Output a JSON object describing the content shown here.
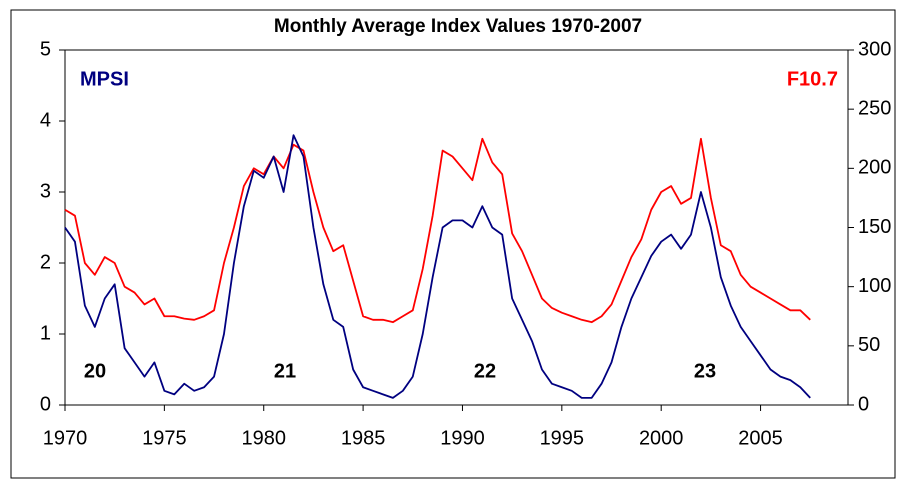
{
  "chart_data": {
    "type": "line",
    "title": "Monthly Average Index Values 1970-2007",
    "x": [
      1970,
      1970.5,
      1971,
      1971.5,
      1972,
      1972.5,
      1973,
      1973.5,
      1974,
      1974.5,
      1975,
      1975.5,
      1976,
      1976.5,
      1977,
      1977.5,
      1978,
      1978.5,
      1979,
      1979.5,
      1980,
      1980.5,
      1981,
      1981.5,
      1982,
      1982.5,
      1983,
      1983.5,
      1984,
      1984.5,
      1985,
      1985.5,
      1986,
      1986.5,
      1987,
      1987.5,
      1988,
      1988.5,
      1989,
      1989.5,
      1990,
      1990.5,
      1991,
      1991.5,
      1992,
      1992.5,
      1993,
      1993.5,
      1994,
      1994.5,
      1995,
      1995.5,
      1996,
      1996.5,
      1997,
      1997.5,
      1998,
      1998.5,
      1999,
      1999.5,
      2000,
      2000.5,
      2001,
      2001.5,
      2002,
      2002.5,
      2003,
      2003.5,
      2004,
      2004.5,
      2005,
      2005.5,
      2006,
      2006.5,
      2007,
      2007.5
    ],
    "series": [
      {
        "name": "MPSI",
        "color": "#000080",
        "axis": "y",
        "values": [
          2.5,
          2.3,
          1.4,
          1.1,
          1.5,
          1.7,
          0.8,
          0.6,
          0.4,
          0.6,
          0.2,
          0.15,
          0.3,
          0.2,
          0.25,
          0.4,
          1.0,
          2.0,
          2.8,
          3.3,
          3.2,
          3.5,
          3.0,
          3.8,
          3.5,
          2.5,
          1.7,
          1.2,
          1.1,
          0.5,
          0.25,
          0.2,
          0.15,
          0.1,
          0.2,
          0.4,
          1.0,
          1.8,
          2.5,
          2.6,
          2.6,
          2.5,
          2.8,
          2.5,
          2.4,
          1.5,
          1.2,
          0.9,
          0.5,
          0.3,
          0.25,
          0.2,
          0.1,
          0.1,
          0.3,
          0.6,
          1.1,
          1.5,
          1.8,
          2.1,
          2.3,
          2.4,
          2.2,
          2.4,
          3.0,
          2.5,
          1.8,
          1.4,
          1.1,
          0.9,
          0.7,
          0.5,
          0.4,
          0.35,
          0.25,
          0.1
        ]
      },
      {
        "name": "F10.7",
        "color": "#ff0000",
        "axis": "y2",
        "values": [
          165,
          160,
          120,
          110,
          125,
          120,
          100,
          95,
          85,
          90,
          75,
          75,
          73,
          72,
          75,
          80,
          120,
          150,
          185,
          200,
          195,
          210,
          200,
          220,
          215,
          180,
          150,
          130,
          135,
          105,
          75,
          72,
          72,
          70,
          75,
          80,
          115,
          160,
          215,
          210,
          200,
          190,
          225,
          205,
          195,
          145,
          130,
          110,
          90,
          82,
          78,
          75,
          72,
          70,
          75,
          85,
          105,
          125,
          140,
          165,
          180,
          185,
          170,
          175,
          225,
          175,
          135,
          130,
          110,
          100,
          95,
          90,
          85,
          80,
          80,
          72
        ]
      }
    ],
    "annotations": [
      "20",
      "21",
      "22",
      "23"
    ],
    "xlim": [
      1970,
      2009.4
    ],
    "xticks": [
      1970,
      1975,
      1980,
      1985,
      1990,
      1995,
      2000,
      2005
    ],
    "ylim": [
      0,
      5
    ],
    "yticks": [
      0,
      1,
      2,
      3,
      4,
      5
    ],
    "y2lim": [
      0,
      300
    ],
    "y2ticks": [
      0,
      50,
      100,
      150,
      200,
      250,
      300
    ],
    "grid": false
  }
}
